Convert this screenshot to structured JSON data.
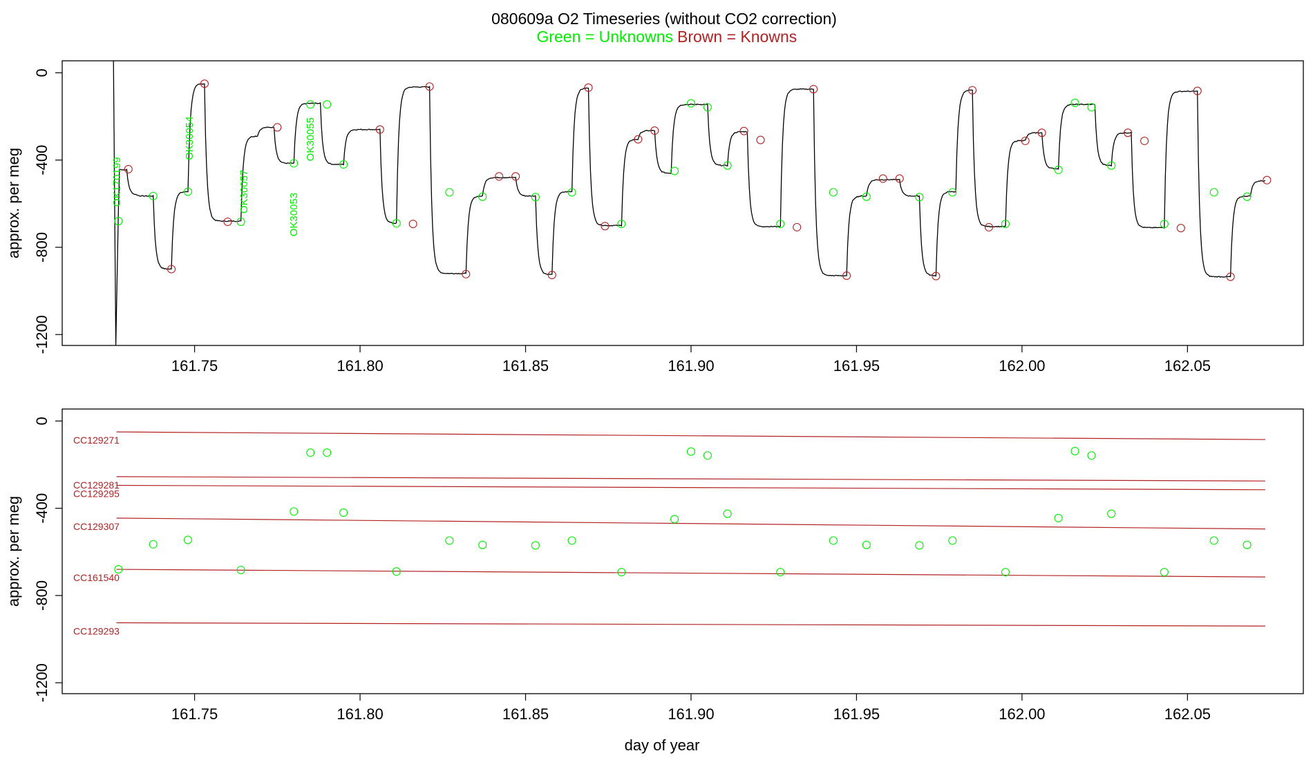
{
  "title": {
    "main": "080609a   O2 Timeseries (without CO2 correction)",
    "green_part": "Green = Unknowns",
    "brown_part": "Brown = Knowns"
  },
  "colors": {
    "unknown": "#00ee00",
    "known": "#b22222",
    "trace": "#000000",
    "axis": "#000000"
  },
  "chart_data": [
    {
      "type": "line",
      "ylabel": "approx. per meg",
      "xlim": [
        161.71,
        162.085
      ],
      "ylim": [
        -1250,
        55
      ],
      "grid": false,
      "legend": "none",
      "xticks": [
        161.75,
        161.8,
        161.85,
        161.9,
        161.95,
        162.0,
        162.05
      ],
      "xtick_labels": [
        "161.75",
        "161.80",
        "161.85",
        "161.90",
        "161.95",
        "162.00",
        "162.05"
      ],
      "yticks": [
        0,
        -400,
        -800,
        -1200
      ],
      "ytick_labels": [
        "0",
        "-400",
        "-800",
        "-1200"
      ],
      "trace": {
        "name": "",
        "start": [
          161.7264,
          -440
        ],
        "levels": [
          [
            161.7295,
            -445
          ],
          [
            161.7325,
            -560
          ],
          [
            161.7375,
            -565
          ],
          [
            161.743,
            -900
          ],
          [
            161.748,
            -545
          ],
          [
            161.753,
            -50
          ],
          [
            161.764,
            -680
          ],
          [
            161.769,
            -290
          ],
          [
            161.774,
            -250
          ],
          [
            161.78,
            -415
          ],
          [
            161.788,
            -140
          ],
          [
            161.795,
            -420
          ],
          [
            161.806,
            -260
          ],
          [
            161.811,
            -690
          ],
          [
            161.821,
            -65
          ],
          [
            161.832,
            -920
          ],
          [
            161.837,
            -565
          ],
          [
            161.847,
            -480
          ],
          [
            161.853,
            -565
          ],
          [
            161.858,
            -925
          ],
          [
            161.864,
            -545
          ],
          [
            161.869,
            -70
          ],
          [
            161.879,
            -700
          ],
          [
            161.884,
            -305
          ],
          [
            161.889,
            -265
          ],
          [
            161.894,
            -460
          ],
          [
            161.905,
            -145
          ],
          [
            161.911,
            -425
          ],
          [
            161.917,
            -270
          ],
          [
            161.927,
            -705
          ],
          [
            161.937,
            -75
          ],
          [
            161.947,
            -930
          ],
          [
            161.953,
            -565
          ],
          [
            161.963,
            -490
          ],
          [
            161.969,
            -565
          ],
          [
            161.974,
            -930
          ],
          [
            161.98,
            -545
          ],
          [
            161.985,
            -80
          ],
          [
            161.995,
            -705
          ],
          [
            162.001,
            -310
          ],
          [
            162.006,
            -275
          ],
          [
            162.011,
            -440
          ],
          [
            162.022,
            -145
          ],
          [
            162.027,
            -425
          ],
          [
            162.033,
            -275
          ],
          [
            162.043,
            -710
          ],
          [
            162.053,
            -85
          ],
          [
            162.063,
            -935
          ],
          [
            162.069,
            -565
          ],
          [
            162.0735,
            -495
          ]
        ],
        "startup_spike": [
          [
            161.7255,
            55
          ],
          [
            161.7262,
            -1250
          ],
          [
            161.727,
            -620
          ]
        ]
      },
      "knowns": [
        [
          161.73,
          -442
        ],
        [
          161.743,
          -900
        ],
        [
          161.753,
          -50
        ],
        [
          161.76,
          -683
        ],
        [
          161.775,
          -250
        ],
        [
          161.806,
          -260
        ],
        [
          161.816,
          -693
        ],
        [
          161.821,
          -63
        ],
        [
          161.832,
          -923
        ],
        [
          161.842,
          -475
        ],
        [
          161.847,
          -475
        ],
        [
          161.858,
          -927
        ],
        [
          161.869,
          -68
        ],
        [
          161.874,
          -703
        ],
        [
          161.884,
          -305
        ],
        [
          161.889,
          -265
        ],
        [
          161.916,
          -267
        ],
        [
          161.921,
          -308
        ],
        [
          161.932,
          -708
        ],
        [
          161.937,
          -75
        ],
        [
          161.947,
          -930
        ],
        [
          161.958,
          -485
        ],
        [
          161.963,
          -485
        ],
        [
          161.974,
          -932
        ],
        [
          161.985,
          -80
        ],
        [
          161.99,
          -708
        ],
        [
          162.001,
          -312
        ],
        [
          162.006,
          -275
        ],
        [
          162.032,
          -275
        ],
        [
          162.037,
          -312
        ],
        [
          162.048,
          -712
        ],
        [
          162.053,
          -83
        ],
        [
          162.063,
          -935
        ],
        [
          162.074,
          -492
        ]
      ],
      "unknowns": [
        [
          161.727,
          -680
        ],
        [
          161.7375,
          -565
        ],
        [
          161.748,
          -545
        ],
        [
          161.764,
          -683
        ],
        [
          161.78,
          -415
        ],
        [
          161.785,
          -145
        ],
        [
          161.79,
          -145
        ],
        [
          161.795,
          -420
        ],
        [
          161.811,
          -690
        ],
        [
          161.827,
          -548
        ],
        [
          161.837,
          -568
        ],
        [
          161.853,
          -570
        ],
        [
          161.864,
          -548
        ],
        [
          161.879,
          -693
        ],
        [
          161.895,
          -450
        ],
        [
          161.9,
          -140
        ],
        [
          161.905,
          -158
        ],
        [
          161.911,
          -425
        ],
        [
          161.927,
          -693
        ],
        [
          161.943,
          -548
        ],
        [
          161.953,
          -568
        ],
        [
          161.969,
          -570
        ],
        [
          161.979,
          -548
        ],
        [
          161.995,
          -693
        ],
        [
          162.011,
          -445
        ],
        [
          162.016,
          -138
        ],
        [
          162.021,
          -158
        ],
        [
          162.027,
          -425
        ],
        [
          162.043,
          -693
        ],
        [
          162.058,
          -548
        ],
        [
          162.068,
          -568
        ]
      ],
      "annotations": [
        {
          "text": "OK170199",
          "x": 161.7275,
          "y": -500
        },
        {
          "text": "OK30054",
          "x": 161.7495,
          "y": -300
        },
        {
          "text": "OK30057",
          "x": 161.766,
          "y": -545
        },
        {
          "text": "OK30053",
          "x": 161.781,
          "y": -650
        },
        {
          "text": "OK30055",
          "x": 161.786,
          "y": -305
        }
      ]
    },
    {
      "type": "scatter",
      "xlabel": "day of year",
      "ylabel": "approx. per meg",
      "xlim": [
        161.71,
        162.085
      ],
      "ylim": [
        -1250,
        55
      ],
      "grid": false,
      "legend": "none",
      "xticks": [
        161.75,
        161.8,
        161.85,
        161.9,
        161.95,
        162.0,
        162.05
      ],
      "xtick_labels": [
        "161.75",
        "161.80",
        "161.85",
        "161.90",
        "161.95",
        "162.00",
        "162.05"
      ],
      "yticks": [
        0,
        -400,
        -800,
        -1200
      ],
      "ytick_labels": [
        "0",
        "-400",
        "-800",
        "-1200"
      ],
      "reference_lines": [
        {
          "label": "CC129271",
          "start": -50,
          "end": -85
        },
        {
          "label": "CC129281",
          "start": -255,
          "end": -275
        },
        {
          "label": "CC129295",
          "start": -295,
          "end": -315
        },
        {
          "label": "CC129307",
          "start": -445,
          "end": -495
        },
        {
          "label": "CC161540",
          "start": -680,
          "end": -715
        },
        {
          "label": "CC129293",
          "start": -925,
          "end": -940
        }
      ],
      "reference_x_range": [
        161.7264,
        162.0735
      ],
      "unknowns": [
        [
          161.727,
          -680
        ],
        [
          161.7375,
          -565
        ],
        [
          161.748,
          -545
        ],
        [
          161.764,
          -683
        ],
        [
          161.78,
          -415
        ],
        [
          161.785,
          -145
        ],
        [
          161.79,
          -145
        ],
        [
          161.795,
          -420
        ],
        [
          161.811,
          -690
        ],
        [
          161.827,
          -548
        ],
        [
          161.837,
          -568
        ],
        [
          161.853,
          -570
        ],
        [
          161.864,
          -548
        ],
        [
          161.879,
          -693
        ],
        [
          161.895,
          -450
        ],
        [
          161.9,
          -140
        ],
        [
          161.905,
          -158
        ],
        [
          161.911,
          -425
        ],
        [
          161.927,
          -693
        ],
        [
          161.943,
          -548
        ],
        [
          161.953,
          -568
        ],
        [
          161.969,
          -570
        ],
        [
          161.979,
          -548
        ],
        [
          161.995,
          -693
        ],
        [
          162.011,
          -445
        ],
        [
          162.016,
          -138
        ],
        [
          162.021,
          -158
        ],
        [
          162.027,
          -425
        ],
        [
          162.043,
          -693
        ],
        [
          162.058,
          -548
        ],
        [
          162.068,
          -568
        ]
      ]
    }
  ]
}
